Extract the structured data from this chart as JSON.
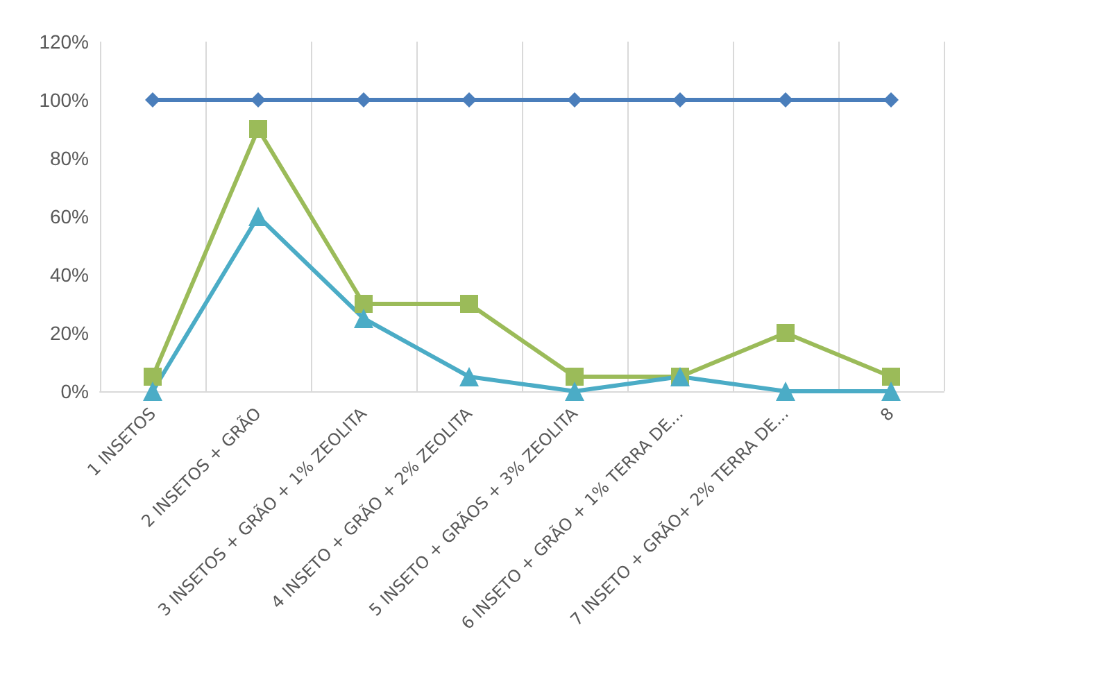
{
  "chart_data": {
    "type": "line",
    "categories": [
      "1 INSETOS",
      "2 INSETOS + GRÃO",
      "3 INSETOS + GRÃO + 1% ZEOLITA",
      "4 INSETO + GRÃO + 2% ZEOLITA",
      "5 INSETO + GRÃOS + 3% ZEOLITA",
      "6 INSETO + GRÃO + 1% TERRA DE...",
      "7 INSETO + GRÃO+ 2% TERRA DE...",
      "8"
    ],
    "series": [
      {
        "color": "#4a7ebb",
        "marker": "diamond",
        "values": [
          100,
          100,
          100,
          100,
          100,
          100,
          100,
          100
        ]
      },
      {
        "color": "#9bbb59",
        "marker": "square",
        "values": [
          5,
          90,
          30,
          30,
          5,
          5,
          20,
          5
        ]
      },
      {
        "color": "#4bacc6",
        "marker": "triangle",
        "values": [
          0,
          60,
          25,
          5,
          0,
          5,
          0,
          0
        ]
      }
    ],
    "ylim": [
      0,
      120
    ],
    "yticks": [
      {
        "value": 0,
        "label": "0%"
      },
      {
        "value": 20,
        "label": "20%"
      },
      {
        "value": 40,
        "label": "40%"
      },
      {
        "value": 60,
        "label": "60%"
      },
      {
        "value": 80,
        "label": "80%"
      },
      {
        "value": 100,
        "label": "100%"
      },
      {
        "value": 120,
        "label": "120%"
      }
    ],
    "grid": "x",
    "line_style": "solid"
  }
}
